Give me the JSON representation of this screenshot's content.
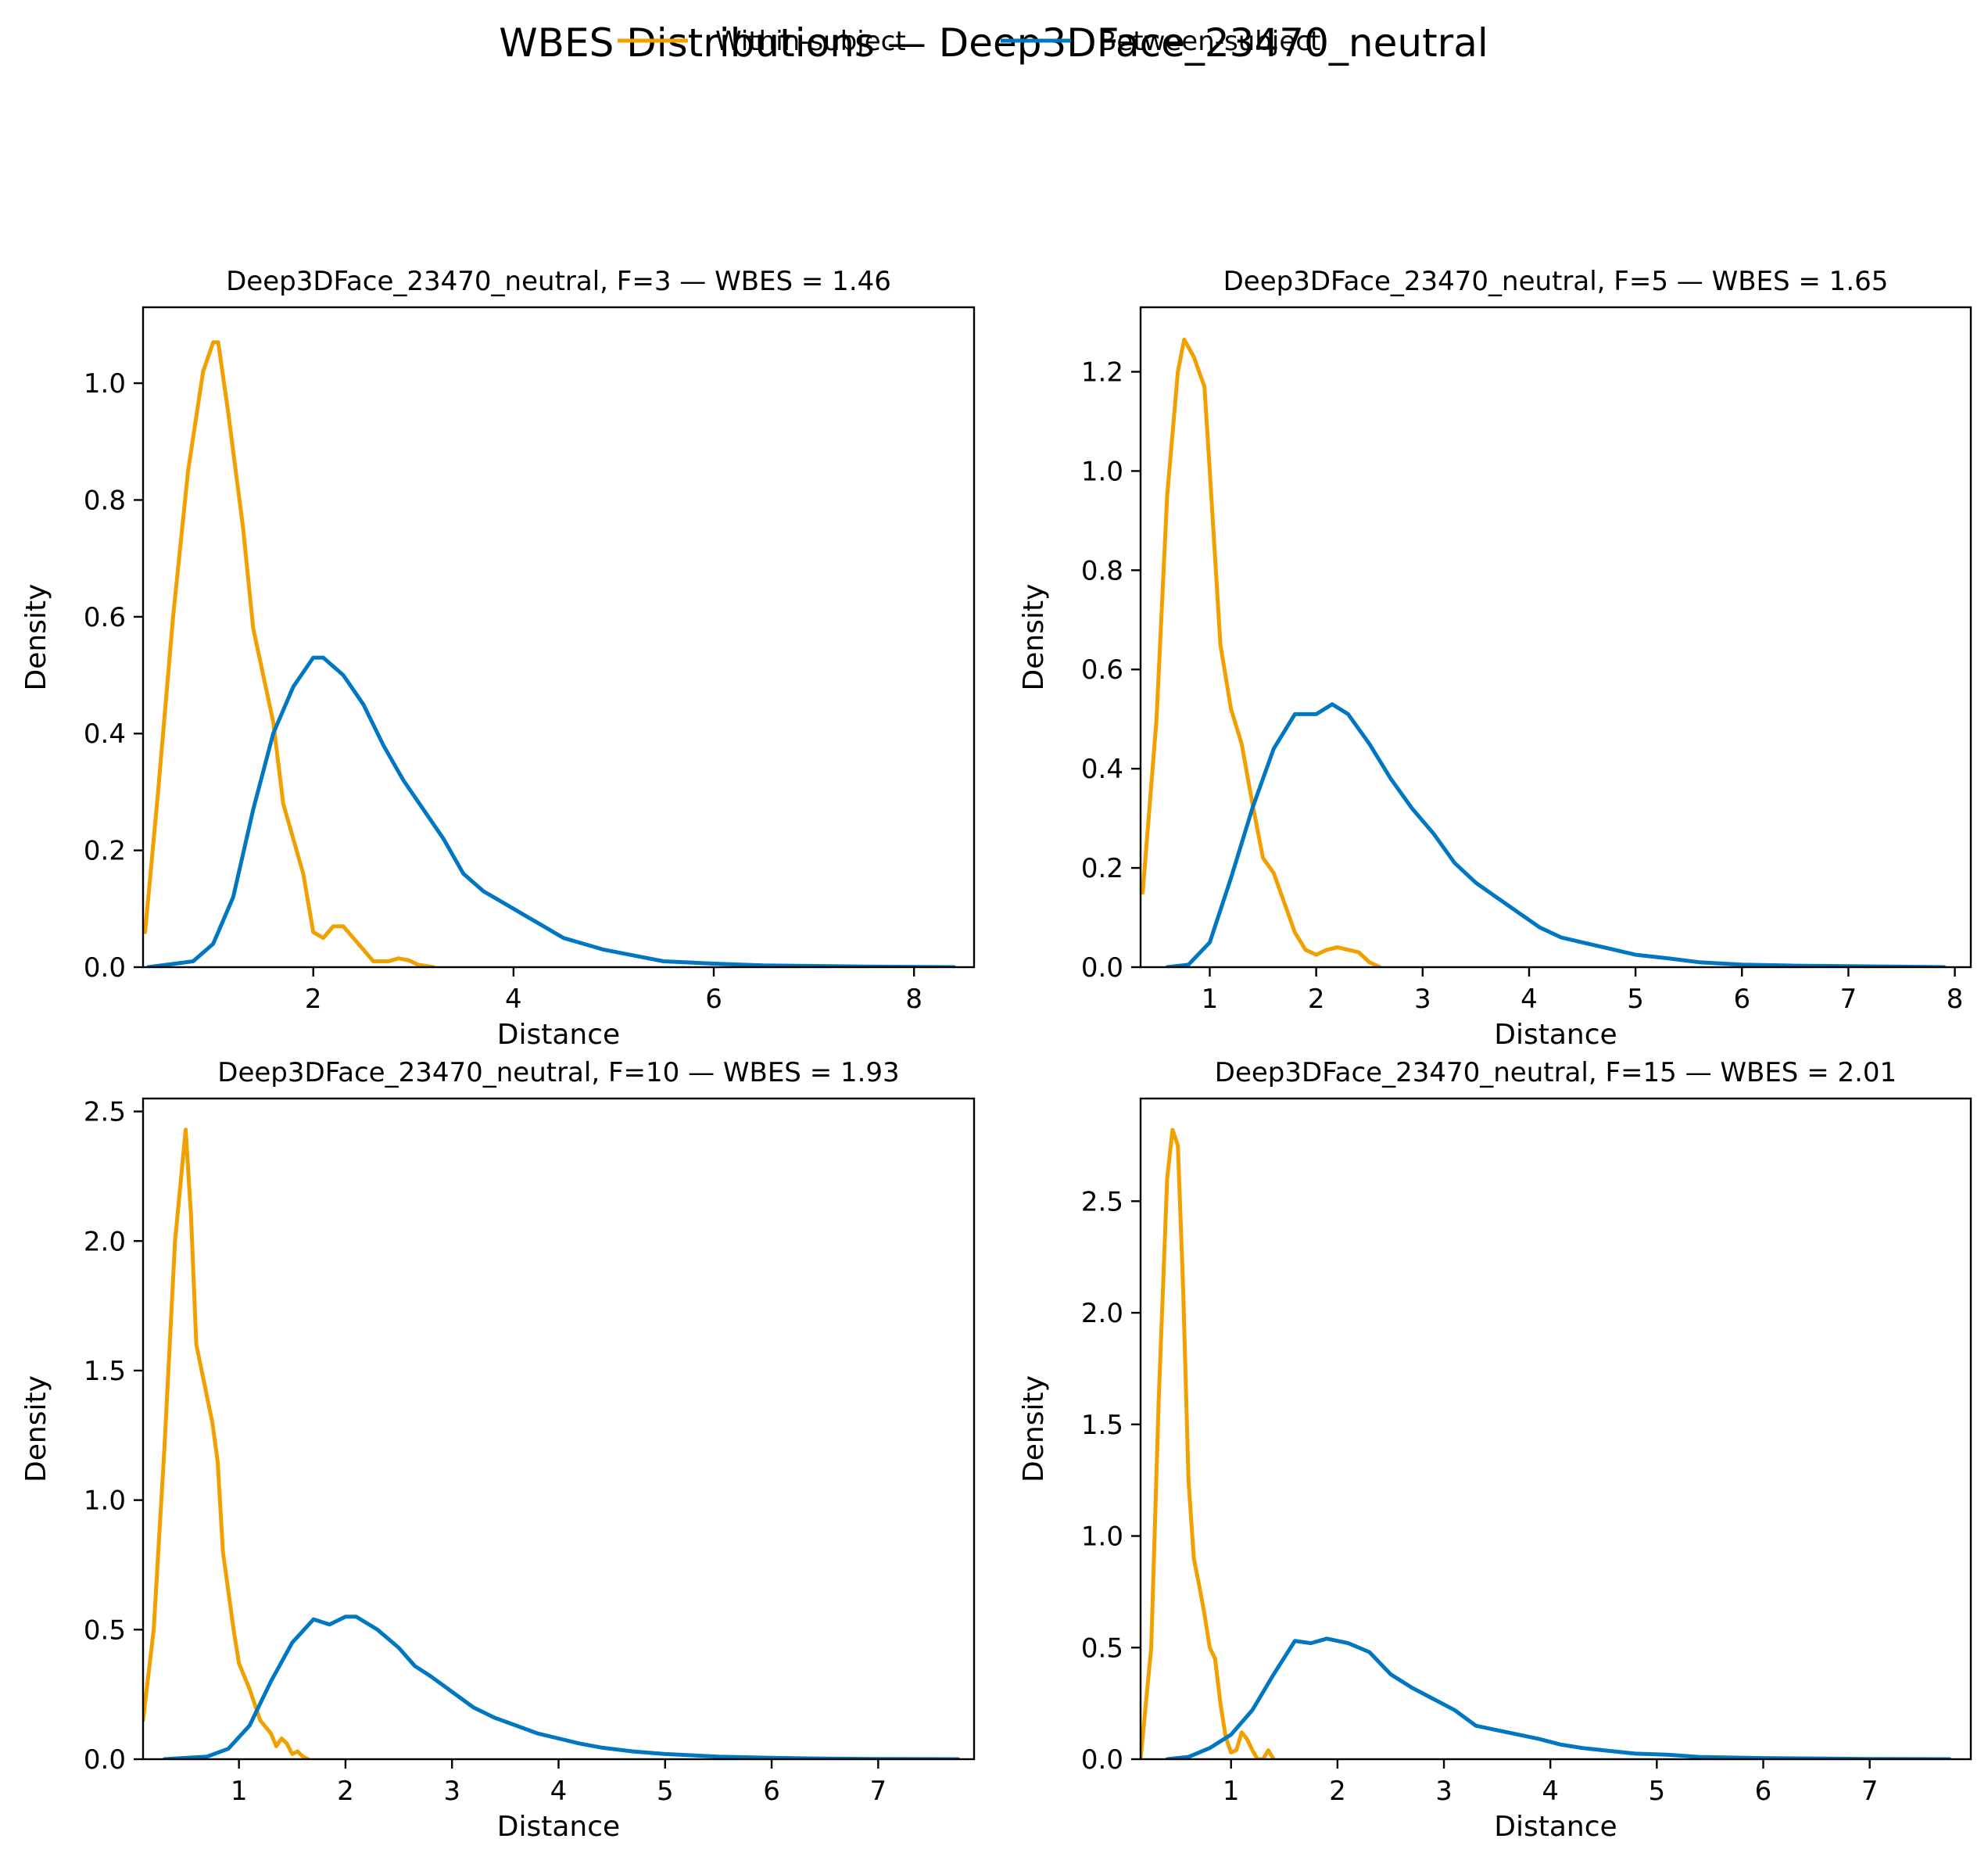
{
  "figure": {
    "title": "WBES Distributions — Deep3DFace_23470_neutral",
    "legend": {
      "placement": "top-center",
      "entries": [
        {
          "label": "Within-subject",
          "color": "#f0a000"
        },
        {
          "label": "Between-subject",
          "color": "#0077c0"
        }
      ]
    }
  },
  "chart_data": [
    {
      "type": "line",
      "title": "Deep3DFace_23470_neutral, F=3 — WBES = 1.46",
      "xlabel": "Distance",
      "ylabel": "Density",
      "xlim": [
        0.3,
        8.6
      ],
      "ylim": [
        0,
        1.13
      ],
      "xticks": [
        2,
        4,
        6,
        8
      ],
      "yticks": [
        0.0,
        0.2,
        0.4,
        0.6,
        0.8,
        1.0
      ],
      "ytick_labels": [
        "0.0",
        "0.2",
        "0.4",
        "0.6",
        "0.8",
        "1.0"
      ],
      "series": [
        {
          "name": "Within-subject",
          "color": "#f0a000",
          "points": [
            [
              0.32,
              0.06
            ],
            [
              0.45,
              0.3
            ],
            [
              0.6,
              0.6
            ],
            [
              0.75,
              0.85
            ],
            [
              0.9,
              1.02
            ],
            [
              1.0,
              1.07
            ],
            [
              1.05,
              1.07
            ],
            [
              1.15,
              0.95
            ],
            [
              1.3,
              0.75
            ],
            [
              1.4,
              0.58
            ],
            [
              1.5,
              0.5
            ],
            [
              1.6,
              0.42
            ],
            [
              1.7,
              0.28
            ],
            [
              1.8,
              0.22
            ],
            [
              1.9,
              0.16
            ],
            [
              2.0,
              0.06
            ],
            [
              2.1,
              0.05
            ],
            [
              2.2,
              0.07
            ],
            [
              2.3,
              0.07
            ],
            [
              2.45,
              0.04
            ],
            [
              2.6,
              0.01
            ],
            [
              2.75,
              0.01
            ],
            [
              2.85,
              0.015
            ],
            [
              2.95,
              0.012
            ],
            [
              3.05,
              0.004
            ],
            [
              3.2,
              0.0
            ]
          ]
        },
        {
          "name": "Between-subject",
          "color": "#0077c0",
          "points": [
            [
              0.35,
              0.0
            ],
            [
              0.8,
              0.01
            ],
            [
              1.0,
              0.04
            ],
            [
              1.2,
              0.12
            ],
            [
              1.4,
              0.27
            ],
            [
              1.6,
              0.4
            ],
            [
              1.8,
              0.48
            ],
            [
              2.0,
              0.53
            ],
            [
              2.1,
              0.53
            ],
            [
              2.3,
              0.5
            ],
            [
              2.5,
              0.45
            ],
            [
              2.7,
              0.38
            ],
            [
              2.9,
              0.32
            ],
            [
              3.1,
              0.27
            ],
            [
              3.3,
              0.22
            ],
            [
              3.5,
              0.16
            ],
            [
              3.7,
              0.13
            ],
            [
              3.9,
              0.11
            ],
            [
              4.1,
              0.09
            ],
            [
              4.3,
              0.07
            ],
            [
              4.5,
              0.05
            ],
            [
              4.7,
              0.04
            ],
            [
              4.9,
              0.03
            ],
            [
              5.2,
              0.02
            ],
            [
              5.5,
              0.01
            ],
            [
              6.0,
              0.006
            ],
            [
              6.5,
              0.003
            ],
            [
              7.0,
              0.002
            ],
            [
              7.5,
              0.001
            ],
            [
              8.4,
              0.0
            ]
          ]
        }
      ]
    },
    {
      "type": "line",
      "title": "Deep3DFace_23470_neutral, F=5 — WBES = 1.65",
      "xlabel": "Distance",
      "ylabel": "Density",
      "xlim": [
        0.35,
        8.15
      ],
      "ylim": [
        0,
        1.33
      ],
      "xticks": [
        1,
        2,
        3,
        4,
        5,
        6,
        7,
        8
      ],
      "yticks": [
        0.0,
        0.2,
        0.4,
        0.6,
        0.8,
        1.0,
        1.2
      ],
      "ytick_labels": [
        "0.0",
        "0.2",
        "0.4",
        "0.6",
        "0.8",
        "1.0",
        "1.2"
      ],
      "series": [
        {
          "name": "Within-subject",
          "color": "#f0a000",
          "points": [
            [
              0.37,
              0.15
            ],
            [
              0.5,
              0.5
            ],
            [
              0.6,
              0.95
            ],
            [
              0.7,
              1.2
            ],
            [
              0.76,
              1.265
            ],
            [
              0.85,
              1.23
            ],
            [
              0.95,
              1.17
            ],
            [
              1.0,
              1.0
            ],
            [
              1.1,
              0.65
            ],
            [
              1.2,
              0.52
            ],
            [
              1.3,
              0.45
            ],
            [
              1.4,
              0.33
            ],
            [
              1.5,
              0.22
            ],
            [
              1.6,
              0.19
            ],
            [
              1.7,
              0.13
            ],
            [
              1.8,
              0.07
            ],
            [
              1.9,
              0.035
            ],
            [
              2.0,
              0.025
            ],
            [
              2.1,
              0.035
            ],
            [
              2.2,
              0.04
            ],
            [
              2.3,
              0.035
            ],
            [
              2.4,
              0.03
            ],
            [
              2.5,
              0.01
            ],
            [
              2.6,
              0.0
            ]
          ]
        },
        {
          "name": "Between-subject",
          "color": "#0077c0",
          "points": [
            [
              0.6,
              0.0
            ],
            [
              0.8,
              0.005
            ],
            [
              1.0,
              0.05
            ],
            [
              1.2,
              0.18
            ],
            [
              1.4,
              0.32
            ],
            [
              1.6,
              0.44
            ],
            [
              1.8,
              0.51
            ],
            [
              2.0,
              0.51
            ],
            [
              2.15,
              0.53
            ],
            [
              2.3,
              0.51
            ],
            [
              2.5,
              0.45
            ],
            [
              2.7,
              0.38
            ],
            [
              2.9,
              0.32
            ],
            [
              3.1,
              0.27
            ],
            [
              3.3,
              0.21
            ],
            [
              3.5,
              0.17
            ],
            [
              3.7,
              0.14
            ],
            [
              3.9,
              0.11
            ],
            [
              4.1,
              0.08
            ],
            [
              4.3,
              0.06
            ],
            [
              4.5,
              0.05
            ],
            [
              4.7,
              0.04
            ],
            [
              5.0,
              0.025
            ],
            [
              5.3,
              0.018
            ],
            [
              5.6,
              0.01
            ],
            [
              6.0,
              0.005
            ],
            [
              6.5,
              0.003
            ],
            [
              7.0,
              0.002
            ],
            [
              7.5,
              0.001
            ],
            [
              7.9,
              0.0
            ]
          ]
        }
      ]
    },
    {
      "type": "line",
      "title": "Deep3DFace_23470_neutral, F=10 — WBES = 1.93",
      "xlabel": "Distance",
      "ylabel": "Density",
      "xlim": [
        0.1,
        7.9
      ],
      "ylim": [
        0,
        2.55
      ],
      "xticks": [
        1,
        2,
        3,
        4,
        5,
        6,
        7
      ],
      "yticks": [
        0.0,
        0.5,
        1.0,
        1.5,
        2.0,
        2.5
      ],
      "ytick_labels": [
        "0.0",
        "0.5",
        "1.0",
        "1.5",
        "2.0",
        "2.5"
      ],
      "series": [
        {
          "name": "Within-subject",
          "color": "#f0a000",
          "points": [
            [
              0.1,
              0.15
            ],
            [
              0.2,
              0.5
            ],
            [
              0.3,
              1.2
            ],
            [
              0.4,
              2.0
            ],
            [
              0.5,
              2.43
            ],
            [
              0.55,
              2.1
            ],
            [
              0.6,
              1.6
            ],
            [
              0.7,
              1.4
            ],
            [
              0.75,
              1.3
            ],
            [
              0.8,
              1.15
            ],
            [
              0.85,
              0.8
            ],
            [
              0.95,
              0.5
            ],
            [
              1.0,
              0.37
            ],
            [
              1.1,
              0.27
            ],
            [
              1.2,
              0.15
            ],
            [
              1.3,
              0.1
            ],
            [
              1.35,
              0.05
            ],
            [
              1.4,
              0.08
            ],
            [
              1.45,
              0.06
            ],
            [
              1.5,
              0.02
            ],
            [
              1.55,
              0.03
            ],
            [
              1.6,
              0.01
            ],
            [
              1.65,
              0.0
            ]
          ]
        },
        {
          "name": "Between-subject",
          "color": "#0077c0",
          "points": [
            [
              0.3,
              0.0
            ],
            [
              0.7,
              0.01
            ],
            [
              0.9,
              0.04
            ],
            [
              1.1,
              0.13
            ],
            [
              1.3,
              0.3
            ],
            [
              1.5,
              0.45
            ],
            [
              1.7,
              0.54
            ],
            [
              1.85,
              0.52
            ],
            [
              2.0,
              0.55
            ],
            [
              2.1,
              0.55
            ],
            [
              2.3,
              0.5
            ],
            [
              2.5,
              0.43
            ],
            [
              2.65,
              0.36
            ],
            [
              2.8,
              0.32
            ],
            [
              3.0,
              0.26
            ],
            [
              3.2,
              0.2
            ],
            [
              3.4,
              0.16
            ],
            [
              3.6,
              0.13
            ],
            [
              3.8,
              0.1
            ],
            [
              4.0,
              0.08
            ],
            [
              4.2,
              0.06
            ],
            [
              4.4,
              0.045
            ],
            [
              4.7,
              0.03
            ],
            [
              5.0,
              0.02
            ],
            [
              5.5,
              0.01
            ],
            [
              6.0,
              0.005
            ],
            [
              6.5,
              0.002
            ],
            [
              7.0,
              0.001
            ],
            [
              7.75,
              0.0
            ]
          ]
        }
      ]
    },
    {
      "type": "line",
      "title": "Deep3DFace_23470_neutral, F=15 — WBES = 2.01",
      "xlabel": "Distance",
      "ylabel": "Density",
      "xlim": [
        0.15,
        7.95
      ],
      "ylim": [
        0,
        2.96
      ],
      "xticks": [
        1,
        2,
        3,
        4,
        5,
        6,
        7
      ],
      "yticks": [
        0.0,
        0.5,
        1.0,
        1.5,
        2.0,
        2.5
      ],
      "ytick_labels": [
        "0.0",
        "0.5",
        "1.0",
        "1.5",
        "2.0",
        "2.5"
      ],
      "series": [
        {
          "name": "Within-subject",
          "color": "#f0a000",
          "points": [
            [
              0.15,
              0.0
            ],
            [
              0.25,
              0.5
            ],
            [
              0.32,
              1.6
            ],
            [
              0.4,
              2.6
            ],
            [
              0.45,
              2.82
            ],
            [
              0.5,
              2.75
            ],
            [
              0.55,
              2.1
            ],
            [
              0.6,
              1.25
            ],
            [
              0.65,
              0.9
            ],
            [
              0.7,
              0.78
            ],
            [
              0.75,
              0.65
            ],
            [
              0.8,
              0.5
            ],
            [
              0.85,
              0.45
            ],
            [
              0.9,
              0.25
            ],
            [
              0.95,
              0.1
            ],
            [
              1.0,
              0.03
            ],
            [
              1.05,
              0.04
            ],
            [
              1.1,
              0.12
            ],
            [
              1.15,
              0.09
            ],
            [
              1.2,
              0.04
            ],
            [
              1.25,
              0.0
            ],
            [
              1.3,
              0.0
            ],
            [
              1.35,
              0.04
            ],
            [
              1.4,
              0.0
            ]
          ]
        },
        {
          "name": "Between-subject",
          "color": "#0077c0",
          "points": [
            [
              0.4,
              0.0
            ],
            [
              0.6,
              0.01
            ],
            [
              0.8,
              0.05
            ],
            [
              1.0,
              0.11
            ],
            [
              1.2,
              0.22
            ],
            [
              1.4,
              0.38
            ],
            [
              1.6,
              0.53
            ],
            [
              1.75,
              0.52
            ],
            [
              1.9,
              0.54
            ],
            [
              2.1,
              0.52
            ],
            [
              2.3,
              0.48
            ],
            [
              2.5,
              0.38
            ],
            [
              2.7,
              0.32
            ],
            [
              2.9,
              0.27
            ],
            [
              3.1,
              0.22
            ],
            [
              3.3,
              0.15
            ],
            [
              3.5,
              0.13
            ],
            [
              3.7,
              0.11
            ],
            [
              3.9,
              0.09
            ],
            [
              4.1,
              0.065
            ],
            [
              4.3,
              0.05
            ],
            [
              4.5,
              0.04
            ],
            [
              4.8,
              0.025
            ],
            [
              5.1,
              0.02
            ],
            [
              5.4,
              0.01
            ],
            [
              6.0,
              0.005
            ],
            [
              6.5,
              0.003
            ],
            [
              7.0,
              0.001
            ],
            [
              7.75,
              0.0
            ]
          ]
        }
      ]
    }
  ]
}
